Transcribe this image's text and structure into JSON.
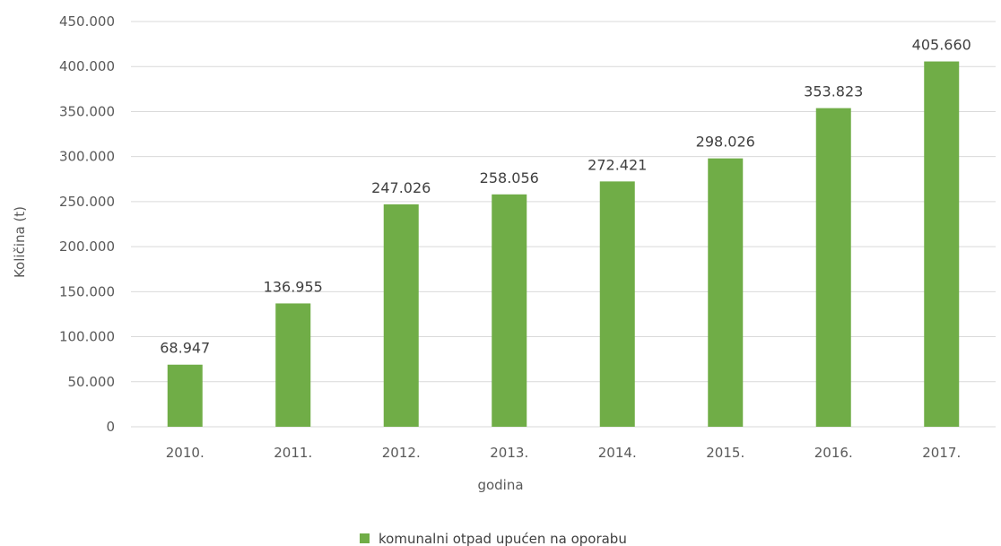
{
  "chart_data": {
    "type": "bar",
    "categories": [
      "2010.",
      "2011.",
      "2012.",
      "2013.",
      "2014.",
      "2015.",
      "2016.",
      "2017."
    ],
    "series": [
      {
        "name": "komunalni otpad upućen na oporabu",
        "values": [
          68947,
          136955,
          247026,
          258056,
          272421,
          298026,
          353823,
          405660
        ],
        "labels": [
          "68.947",
          "136.955",
          "247.026",
          "258.056",
          "272.421",
          "298.026",
          "353.823",
          "405.660"
        ],
        "color": "#70ad47"
      }
    ],
    "xlabel": "godina",
    "ylabel": "Količina (t)",
    "ylim": [
      0,
      450000
    ],
    "yticks": [
      0,
      50000,
      100000,
      150000,
      200000,
      250000,
      300000,
      350000,
      400000,
      450000
    ],
    "ytick_labels": [
      "0",
      "50.000",
      "100.000",
      "150.000",
      "200.000",
      "250.000",
      "300.000",
      "350.000",
      "400.000",
      "450.000"
    ],
    "grid": true,
    "legend": "bottom-center"
  }
}
